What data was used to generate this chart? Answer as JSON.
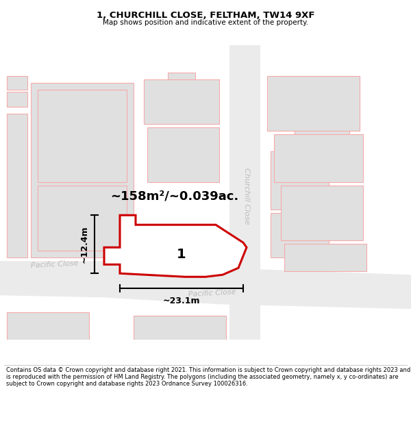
{
  "title": "1, CHURCHILL CLOSE, FELTHAM, TW14 9XF",
  "subtitle": "Map shows position and indicative extent of the property.",
  "footer": "Contains OS data © Crown copyright and database right 2021. This information is subject to Crown copyright and database rights 2023 and is reproduced with the permission of HM Land Registry. The polygons (including the associated geometry, namely x, y co-ordinates) are subject to Crown copyright and database rights 2023 Ordnance Survey 100026316.",
  "area_label": "~158m²/~0.039ac.",
  "width_label": "~23.1m",
  "height_label": "~12.4m",
  "plot_number": "1",
  "bg_color": "#ffffff",
  "building_color": "#e0e0e0",
  "outline_color": "#f5aaaa",
  "plot_outline_color": "#cc0000",
  "street_label_color": "#bbbbbb",
  "title_color": "#000000",
  "footer_color": "#000000",
  "dim_color": "#000000",
  "road_fill": "#ebebeb"
}
